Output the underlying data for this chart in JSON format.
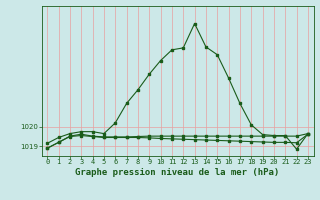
{
  "title": "Graphe pression niveau de la mer (hPa)",
  "bg_color": "#cce8e8",
  "grid_color": "#e8a0a0",
  "line_color": "#1a5c1a",
  "xlim": [
    -0.5,
    23.5
  ],
  "ylim": [
    1018.5,
    1026.2
  ],
  "yticks": [
    1019,
    1020
  ],
  "xticks": [
    0,
    1,
    2,
    3,
    4,
    5,
    6,
    7,
    8,
    9,
    10,
    11,
    12,
    13,
    14,
    15,
    16,
    17,
    18,
    19,
    20,
    21,
    22,
    23
  ],
  "line1_x": [
    0,
    1,
    2,
    3,
    4,
    5,
    6,
    7,
    8,
    9,
    10,
    11,
    12,
    13,
    14,
    15,
    16,
    17,
    18,
    19,
    20,
    21,
    22,
    23
  ],
  "line1_y": [
    1019.15,
    1019.45,
    1019.65,
    1019.75,
    1019.75,
    1019.65,
    1020.2,
    1021.2,
    1021.9,
    1022.7,
    1023.4,
    1023.95,
    1024.05,
    1025.3,
    1024.1,
    1023.7,
    1022.5,
    1021.2,
    1020.1,
    1019.6,
    1019.55,
    1019.55,
    1018.85,
    1019.65
  ],
  "line2_x": [
    0,
    1,
    2,
    3,
    4,
    5,
    6,
    7,
    8,
    9,
    10,
    11,
    12,
    13,
    14,
    15,
    16,
    17,
    18,
    19,
    20,
    21,
    22,
    23
  ],
  "line2_y": [
    1018.9,
    1019.2,
    1019.5,
    1019.55,
    1019.5,
    1019.45,
    1019.45,
    1019.45,
    1019.45,
    1019.43,
    1019.4,
    1019.38,
    1019.36,
    1019.34,
    1019.32,
    1019.3,
    1019.28,
    1019.26,
    1019.24,
    1019.22,
    1019.2,
    1019.2,
    1019.18,
    1019.62
  ],
  "line3_x": [
    0,
    1,
    2,
    3,
    4,
    5,
    6,
    7,
    8,
    9,
    10,
    11,
    12,
    13,
    14,
    15,
    16,
    17,
    18,
    19,
    20,
    21,
    22,
    23
  ],
  "line3_y": [
    1018.9,
    1019.2,
    1019.52,
    1019.62,
    1019.52,
    1019.48,
    1019.48,
    1019.48,
    1019.5,
    1019.52,
    1019.52,
    1019.52,
    1019.52,
    1019.52,
    1019.52,
    1019.52,
    1019.52,
    1019.52,
    1019.52,
    1019.52,
    1019.52,
    1019.52,
    1019.52,
    1019.65
  ],
  "title_fontsize": 6.5,
  "tick_fontsize": 5.0,
  "marker_size": 1.8,
  "line_width": 0.8
}
